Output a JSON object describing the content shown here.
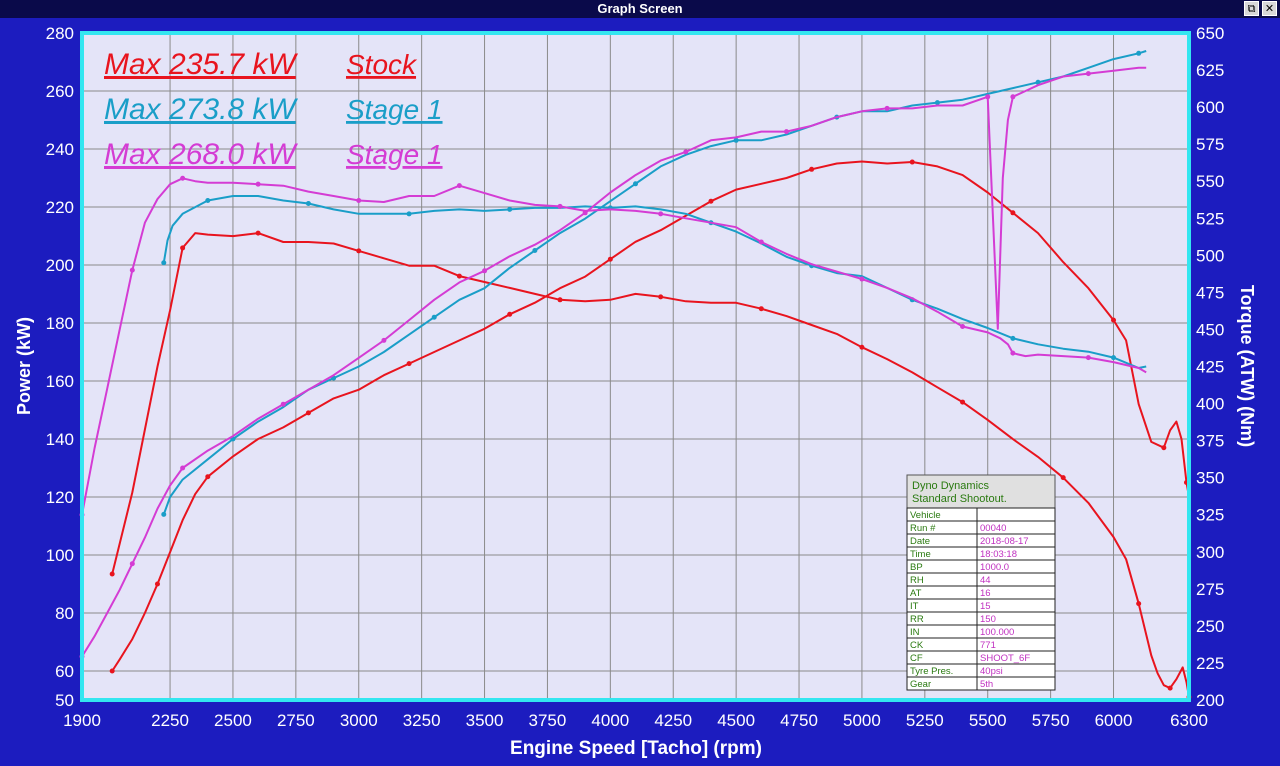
{
  "window": {
    "title": "Graph Screen",
    "restore_icon": "restore-icon",
    "close_icon": "close-icon",
    "restore_glyph": "⧉",
    "close_glyph": "✕"
  },
  "chart_data": {
    "type": "line",
    "xlabel": "Engine Speed [Tacho] (rpm)",
    "ylabel_left": "Power (kW)",
    "ylabel_right": "Torque (ATW) (Nm)",
    "xlim": [
      1900,
      6300
    ],
    "ylim_left": [
      50,
      280
    ],
    "ylim_right": [
      200,
      650
    ],
    "x_ticks": [
      1900,
      2250,
      2500,
      2750,
      3000,
      3250,
      3500,
      3750,
      4000,
      4250,
      4500,
      4750,
      5000,
      5250,
      5500,
      5750,
      6000,
      6300
    ],
    "y_ticks_left": [
      50,
      60,
      80,
      100,
      120,
      140,
      160,
      180,
      200,
      220,
      240,
      260,
      280
    ],
    "y_ticks_right": [
      200,
      225,
      250,
      275,
      300,
      325,
      350,
      375,
      400,
      425,
      450,
      475,
      500,
      525,
      550,
      575,
      600,
      625,
      650
    ],
    "grid": true,
    "colors": {
      "background": "#1c1cbf",
      "plot": "#e4e4f8",
      "frame": "#33e6f0",
      "grid": "#8a8a8a",
      "axis_text": "#ffffff"
    },
    "legend": [
      {
        "max_label": "Max 235.7 kW",
        "run": "Stock",
        "color": "#e8141e"
      },
      {
        "max_label": "Max 273.8 kW",
        "run": "Stage 1",
        "color": "#1a9ec8"
      },
      {
        "max_label": "Max 268.0 kW",
        "run": "Stage 1",
        "color": "#d43cd4"
      }
    ],
    "series": [
      {
        "name": "Stock",
        "measure": "power",
        "axis": "left",
        "color": "#e8141e",
        "x": [
          2020,
          2050,
          2100,
          2150,
          2200,
          2250,
          2300,
          2350,
          2400,
          2500,
          2600,
          2700,
          2800,
          2900,
          3000,
          3100,
          3200,
          3300,
          3400,
          3500,
          3600,
          3700,
          3800,
          3900,
          4000,
          4100,
          4200,
          4300,
          4400,
          4500,
          4600,
          4700,
          4800,
          4900,
          5000,
          5100,
          5200,
          5300,
          5400,
          5500,
          5600,
          5700,
          5800,
          5900,
          6000,
          6050,
          6100,
          6150,
          6200,
          6225,
          6250,
          6270,
          6290,
          6300
        ],
        "y": [
          60,
          64,
          71,
          80,
          90,
          101,
          112,
          121,
          127,
          134,
          140,
          144,
          149,
          154,
          157,
          162,
          166,
          170,
          174,
          178,
          183,
          187,
          192,
          196,
          202,
          208,
          212,
          217,
          222,
          226,
          228,
          230,
          233,
          235,
          235.7,
          235,
          235.5,
          234,
          231,
          225,
          218,
          211,
          201,
          192,
          181,
          174,
          152,
          139,
          137,
          143,
          146,
          140,
          125,
          120
        ]
      },
      {
        "name": "Stock",
        "measure": "torque",
        "axis": "right",
        "color": "#e8141e",
        "x": [
          2020,
          2100,
          2200,
          2250,
          2300,
          2350,
          2400,
          2500,
          2600,
          2700,
          2800,
          2900,
          3000,
          3100,
          3200,
          3300,
          3400,
          3500,
          3600,
          3700,
          3800,
          3900,
          4000,
          4100,
          4200,
          4300,
          4400,
          4500,
          4600,
          4700,
          4800,
          4900,
          5000,
          5100,
          5200,
          5300,
          5400,
          5500,
          5600,
          5700,
          5800,
          5900,
          6000,
          6050,
          6100,
          6150,
          6175,
          6200,
          6225,
          6250,
          6275,
          6290,
          6300
        ],
        "y": [
          285,
          340,
          425,
          463,
          505,
          515,
          514,
          513,
          515,
          509,
          509,
          508,
          503,
          498,
          493,
          493,
          486,
          482,
          478,
          474,
          470,
          469,
          470,
          474,
          472,
          469,
          468,
          468,
          464,
          459,
          453,
          447,
          438,
          430,
          421,
          411,
          401,
          389,
          376,
          364,
          350,
          333,
          310,
          295,
          265,
          230,
          218,
          210,
          208,
          214,
          222,
          212,
          202
        ]
      },
      {
        "name": "Stage 1",
        "measure": "power",
        "axis": "left",
        "color": "#1a9ec8",
        "x": [
          2225,
          2250,
          2300,
          2400,
          2500,
          2600,
          2700,
          2800,
          2900,
          3000,
          3100,
          3200,
          3300,
          3400,
          3500,
          3600,
          3700,
          3800,
          3900,
          4000,
          4100,
          4200,
          4300,
          4400,
          4500,
          4600,
          4700,
          4800,
          4900,
          5000,
          5100,
          5200,
          5300,
          5400,
          5500,
          5600,
          5700,
          5800,
          5900,
          6000,
          6100,
          6130
        ],
        "y": [
          114,
          120,
          126,
          133,
          140,
          146,
          151,
          157,
          161,
          165,
          170,
          176,
          182,
          188,
          192,
          199,
          205,
          211,
          216,
          222,
          228,
          234,
          238,
          241,
          243,
          243,
          245,
          248,
          251,
          253,
          253,
          255,
          256,
          257,
          259,
          261,
          263,
          265,
          268,
          271,
          273,
          273.8
        ]
      },
      {
        "name": "Stage 1",
        "measure": "torque",
        "axis": "right",
        "color": "#1a9ec8",
        "x": [
          2225,
          2240,
          2260,
          2300,
          2400,
          2500,
          2600,
          2700,
          2800,
          2900,
          3000,
          3100,
          3200,
          3300,
          3400,
          3500,
          3600,
          3700,
          3800,
          3900,
          4000,
          4100,
          4200,
          4300,
          4400,
          4500,
          4600,
          4700,
          4800,
          4900,
          5000,
          5100,
          5200,
          5300,
          5400,
          5500,
          5600,
          5700,
          5800,
          5900,
          6000,
          6100,
          6130
        ],
        "y": [
          495,
          510,
          520,
          528,
          537,
          540,
          540,
          537,
          535,
          531,
          528,
          528,
          528,
          530,
          531,
          530,
          531,
          532,
          532,
          533,
          532,
          533,
          531,
          528,
          522,
          516,
          508,
          499,
          493,
          488,
          486,
          478,
          470,
          464,
          457,
          451,
          444,
          440,
          437,
          435,
          431,
          424,
          425
        ]
      },
      {
        "name": "Stage 1",
        "measure": "power",
        "axis": "left",
        "color": "#d43cd4",
        "x": [
          1900,
          1950,
          2000,
          2050,
          2100,
          2150,
          2200,
          2250,
          2300,
          2400,
          2500,
          2600,
          2700,
          2800,
          2900,
          3000,
          3100,
          3200,
          3300,
          3400,
          3500,
          3600,
          3700,
          3800,
          3900,
          4000,
          4100,
          4200,
          4300,
          4400,
          4500,
          4600,
          4700,
          4800,
          4900,
          5000,
          5100,
          5200,
          5300,
          5400,
          5500,
          5540,
          5560,
          5580,
          5600,
          5650,
          5700,
          5800,
          5900,
          6000,
          6100,
          6130
        ],
        "y": [
          65,
          72,
          80,
          88,
          97,
          106,
          116,
          124,
          130,
          136,
          141,
          147,
          152,
          157,
          162,
          168,
          174,
          181,
          188,
          194,
          198,
          203,
          207,
          212,
          218,
          225,
          231,
          236,
          239,
          243,
          244,
          246,
          246,
          248,
          251,
          253,
          254,
          254,
          255,
          255,
          258,
          178,
          230,
          250,
          258,
          260,
          262,
          265,
          266,
          267,
          268,
          268
        ]
      },
      {
        "name": "Stage 1",
        "measure": "torque",
        "axis": "right",
        "color": "#d43cd4",
        "x": [
          1900,
          1950,
          2000,
          2050,
          2100,
          2150,
          2200,
          2250,
          2300,
          2350,
          2400,
          2500,
          2600,
          2700,
          2800,
          2900,
          3000,
          3100,
          3200,
          3300,
          3400,
          3500,
          3600,
          3700,
          3800,
          3900,
          4000,
          4100,
          4200,
          4300,
          4400,
          4500,
          4600,
          4700,
          4800,
          4900,
          5000,
          5100,
          5200,
          5300,
          5400,
          5500,
          5550,
          5580,
          5600,
          5650,
          5700,
          5800,
          5900,
          6000,
          6100,
          6130
        ],
        "y": [
          325,
          370,
          410,
          450,
          490,
          522,
          538,
          548,
          552,
          550,
          549,
          549,
          548,
          547,
          543,
          540,
          537,
          536,
          540,
          540,
          547,
          542,
          537,
          534,
          533,
          530,
          531,
          530,
          528,
          525,
          522,
          519,
          509,
          501,
          494,
          489,
          484,
          478,
          471,
          462,
          452,
          448,
          444,
          440,
          434,
          432,
          433,
          432,
          431,
          428,
          424,
          421
        ]
      }
    ]
  },
  "info_panel": {
    "title_line1": "Dyno Dynamics",
    "title_line2": "Standard Shootout.",
    "rows": [
      {
        "label": "Vehicle",
        "value": ""
      },
      {
        "label": "Run #",
        "value": "00040"
      },
      {
        "label": "Date",
        "value": "2018-08-17"
      },
      {
        "label": "Time",
        "value": "18:03:18"
      },
      {
        "label": "BP",
        "value": "1000.0"
      },
      {
        "label": "RH",
        "value": "44"
      },
      {
        "label": "AT",
        "value": "16"
      },
      {
        "label": "IT",
        "value": "15"
      },
      {
        "label": "RR",
        "value": "150"
      },
      {
        "label": "IN",
        "value": "100.000"
      },
      {
        "label": "CK",
        "value": "771"
      },
      {
        "label": "CF",
        "value": "SHOOT_6F"
      },
      {
        "label": "Tyre Pres.",
        "value": "40psi"
      },
      {
        "label": "Gear",
        "value": "5th"
      }
    ]
  }
}
